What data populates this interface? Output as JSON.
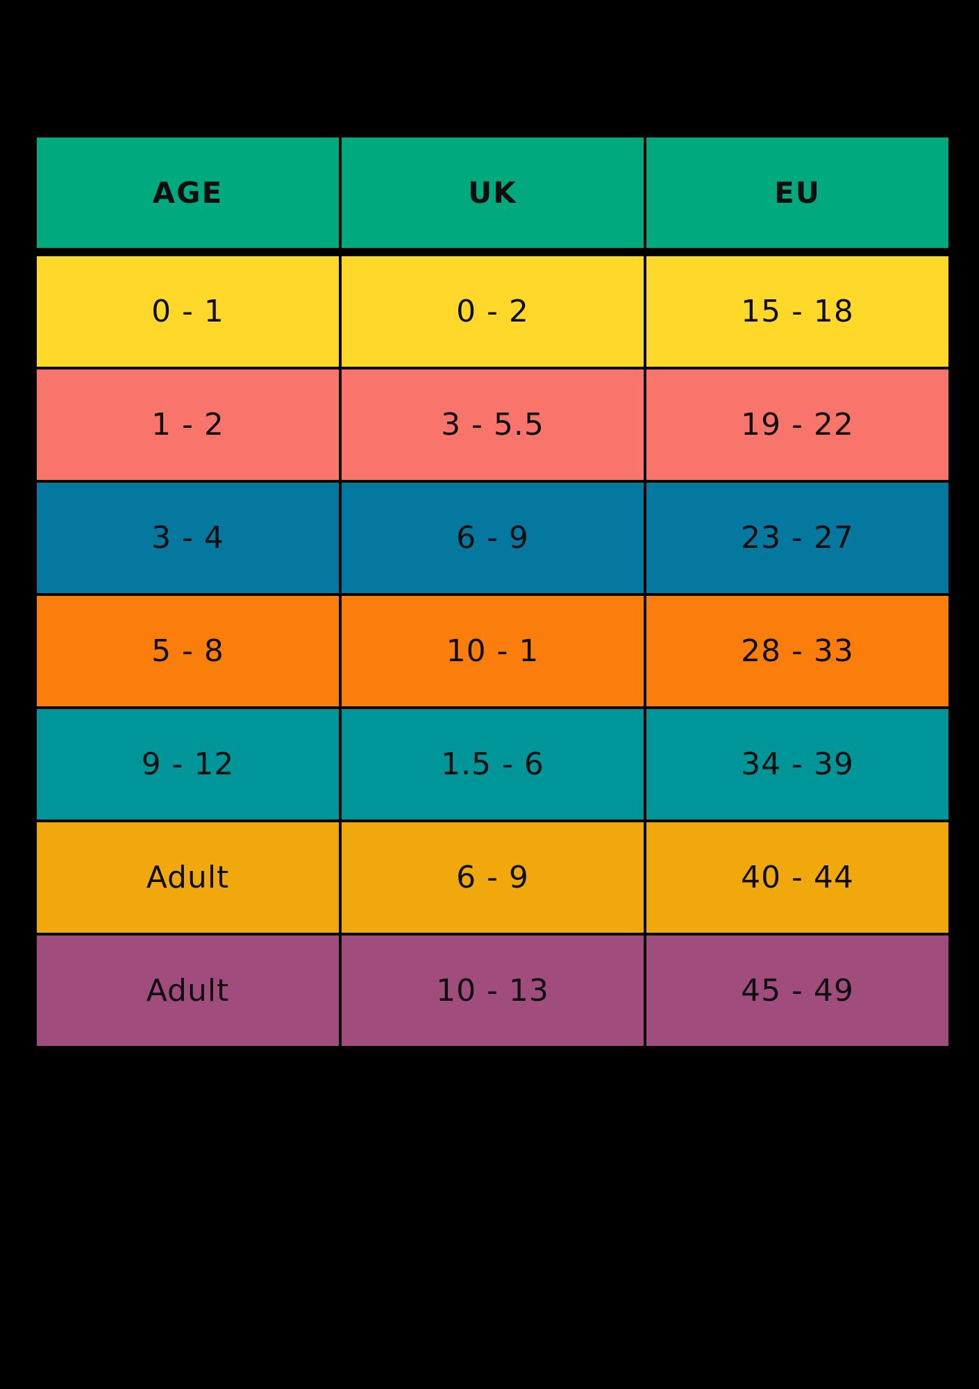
{
  "page": {
    "background": "#000000"
  },
  "chart_data": {
    "type": "table",
    "columns": [
      "AGE",
      "UK",
      "EU"
    ],
    "rows": [
      [
        "0 - 1",
        "0 - 2",
        "15 - 18"
      ],
      [
        "1 - 2",
        "3 - 5.5",
        "19 - 22"
      ],
      [
        "3 - 4",
        "6 - 9",
        "23 - 27"
      ],
      [
        "5 - 8",
        "10 - 1",
        "28 - 33"
      ],
      [
        "9 - 12",
        "1.5 - 6",
        "34 - 39"
      ],
      [
        "Adult",
        "6 - 9",
        "40 - 44"
      ],
      [
        "Adult",
        "10 - 13",
        "45 - 49"
      ]
    ],
    "header_color": "#00a97e",
    "row_colors": [
      "#ffd82a",
      "#f9756b",
      "#04789e",
      "#fb7d0b",
      "#009598",
      "#f0a80d",
      "#a04c7c"
    ],
    "text_color": "#0e0e0e",
    "grid_color": "#000000",
    "legend_position": "none",
    "grid": "black cell borders on black background"
  }
}
